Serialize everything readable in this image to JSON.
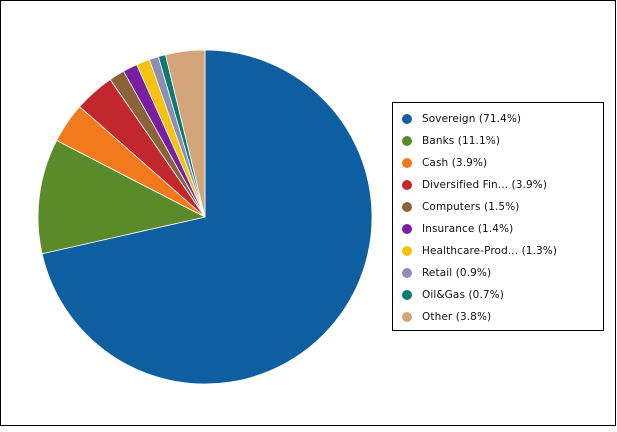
{
  "chart_data": {
    "type": "pie",
    "title": "",
    "slices": [
      {
        "label": "Sovereign",
        "value": 71.4,
        "legend": "Sovereign (71.4%)",
        "color": "#0d5fa1"
      },
      {
        "label": "Banks",
        "value": 11.1,
        "legend": "Banks (11.1%)",
        "color": "#5b8a2a"
      },
      {
        "label": "Cash",
        "value": 3.9,
        "legend": "Cash (3.9%)",
        "color": "#f2791c"
      },
      {
        "label": "Diversified Fin...",
        "value": 3.9,
        "legend": "Diversified Fin... (3.9%)",
        "color": "#c1272d"
      },
      {
        "label": "Computers",
        "value": 1.5,
        "legend": "Computers (1.5%)",
        "color": "#8c6239"
      },
      {
        "label": "Insurance",
        "value": 1.4,
        "legend": "Insurance (1.4%)",
        "color": "#7b1fa2"
      },
      {
        "label": "Healthcare-Prod...",
        "value": 1.3,
        "legend": "Healthcare-Prod... (1.3%)",
        "color": "#f7c10f"
      },
      {
        "label": "Retail",
        "value": 0.9,
        "legend": "Retail (0.9%)",
        "color": "#8e8db5"
      },
      {
        "label": "Oil&Gas",
        "value": 0.7,
        "legend": "Oil&Gas (0.7%)",
        "color": "#0a7a72"
      },
      {
        "label": "Other",
        "value": 3.8,
        "legend": "Other (3.8%)",
        "color": "#d4a57a"
      }
    ],
    "start_angle": "12 o'clock",
    "direction": "clockwise",
    "legend_position": "right"
  }
}
